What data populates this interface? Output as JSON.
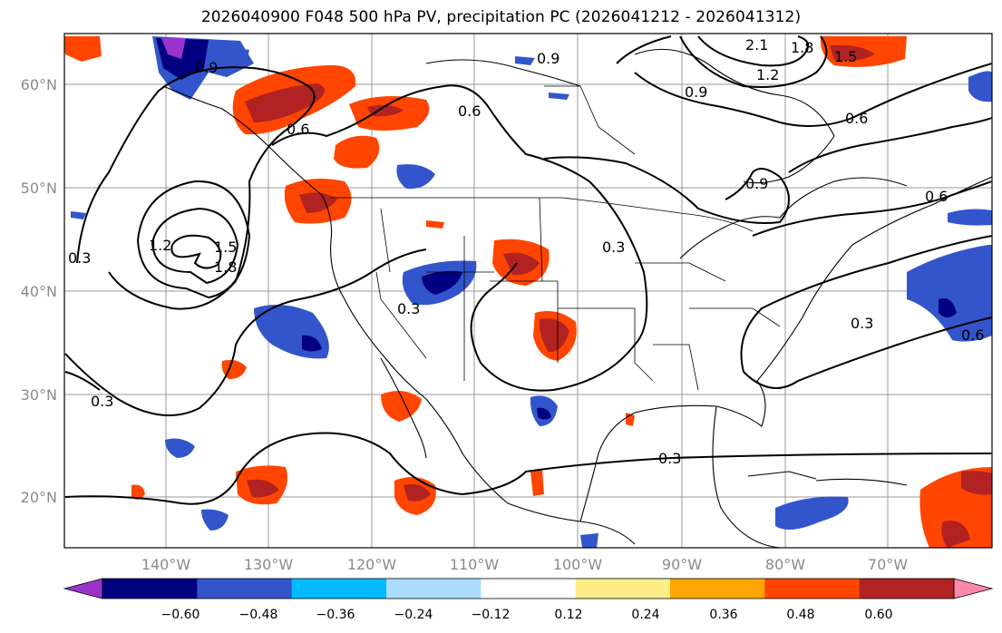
{
  "title": "2026040900 F048 500 hPa PV, precipitation PC (2026041212 - 2026041312)",
  "map": {
    "lat_labels": [
      "60°N",
      "50°N",
      "40°N",
      "30°N",
      "20°N"
    ],
    "lon_labels": [
      "140°W",
      "130°W",
      "120°W",
      "110°W",
      "100°W",
      "90°W",
      "80°W",
      "70°W"
    ]
  },
  "contour_labels": [
    "0.9",
    "2.1",
    "1.8",
    "1.5",
    "1.2",
    "0.9",
    "0.6",
    "0.6",
    "0.9",
    "0.6",
    "0.6",
    "0.9",
    "0.3",
    "1.2",
    "1.8",
    "1.5",
    "0.3",
    "0.3",
    "0.3",
    "0.3",
    "0.6",
    "0.3"
  ],
  "colorbar": {
    "ticks": [
      "−0.60",
      "−0.48",
      "−0.36",
      "−0.24",
      "−0.12",
      "0.12",
      "0.24",
      "0.36",
      "0.48",
      "0.60"
    ],
    "colors": [
      "#9933cc",
      "#000080",
      "#3355cc",
      "#00bbff",
      "#aaddff",
      "#ffffff",
      "#ffee88",
      "#ffa500",
      "#ff4500",
      "#b22222",
      "#ff88aa"
    ]
  }
}
